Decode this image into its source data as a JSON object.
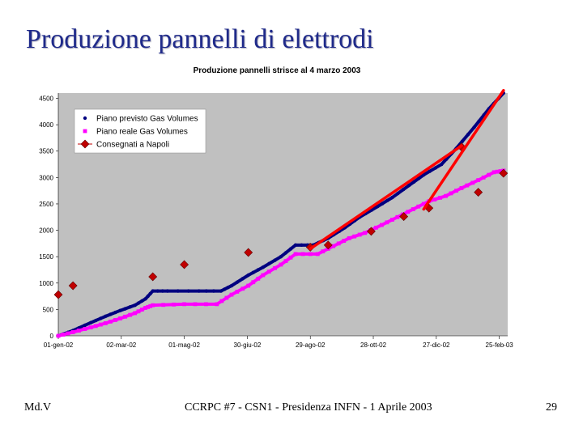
{
  "slide": {
    "title": "Produzione pannelli di elettrodi",
    "footer_left": "Md.V",
    "footer_center": "CCRPC #7 - CSN1 - Presidenza INFN - 1 Aprile 2003",
    "footer_right": "29"
  },
  "colors": {
    "plot_background": "#c0c0c0",
    "planned": "#000080",
    "actual": "#ff00ff",
    "delivered": "#c00000",
    "trend": "#ff0000"
  },
  "chart_data": {
    "type": "line",
    "title": "Produzione pannelli strisce al 4 marzo 2003",
    "xlabel": "",
    "ylabel": "",
    "x_ticks": [
      "01-gen-02",
      "02-mar-02",
      "01-mag-02",
      "30-giu-02",
      "29-ago-02",
      "28-ott-02",
      "27-dic-02",
      "25-feb-03"
    ],
    "y_ticks": [
      0,
      500,
      1000,
      1500,
      2000,
      2500,
      3000,
      3500,
      4000,
      4500
    ],
    "xlim": [
      "2002-01-01",
      "2003-03-05"
    ],
    "ylim": [
      0,
      4600
    ],
    "grid": false,
    "legend_position": "top-left",
    "series": [
      {
        "name": "Piano previsto Gas Volumes",
        "color": "#000080",
        "marker": "circle",
        "points": [
          [
            "2002-01-01",
            0
          ],
          [
            "2002-01-15",
            100
          ],
          [
            "2002-02-01",
            250
          ],
          [
            "2002-02-15",
            370
          ],
          [
            "2002-03-01",
            480
          ],
          [
            "2002-03-15",
            580
          ],
          [
            "2002-03-25",
            700
          ],
          [
            "2002-04-01",
            850
          ],
          [
            "2002-04-15",
            850
          ],
          [
            "2002-05-15",
            850
          ],
          [
            "2002-06-05",
            850
          ],
          [
            "2002-06-15",
            950
          ],
          [
            "2002-07-01",
            1150
          ],
          [
            "2002-07-15",
            1300
          ],
          [
            "2002-08-01",
            1500
          ],
          [
            "2002-08-15",
            1720
          ],
          [
            "2002-09-01",
            1720
          ],
          [
            "2002-09-15",
            1850
          ],
          [
            "2002-10-01",
            2050
          ],
          [
            "2002-10-15",
            2250
          ],
          [
            "2002-11-01",
            2450
          ],
          [
            "2002-11-15",
            2620
          ],
          [
            "2002-12-01",
            2850
          ],
          [
            "2002-12-15",
            3050
          ],
          [
            "2003-01-01",
            3250
          ],
          [
            "2003-01-15",
            3550
          ],
          [
            "2003-02-01",
            3950
          ],
          [
            "2003-02-15",
            4300
          ],
          [
            "2003-03-01",
            4600
          ]
        ]
      },
      {
        "name": "Piano reale Gas Volumes",
        "color": "#ff00ff",
        "marker": "square",
        "points": [
          [
            "2002-01-01",
            0
          ],
          [
            "2002-01-15",
            70
          ],
          [
            "2002-02-01",
            160
          ],
          [
            "2002-02-15",
            240
          ],
          [
            "2002-03-01",
            330
          ],
          [
            "2002-03-15",
            430
          ],
          [
            "2002-03-25",
            530
          ],
          [
            "2002-04-01",
            580
          ],
          [
            "2002-05-01",
            600
          ],
          [
            "2002-06-01",
            600
          ],
          [
            "2002-06-15",
            780
          ],
          [
            "2002-07-01",
            950
          ],
          [
            "2002-07-15",
            1150
          ],
          [
            "2002-08-01",
            1350
          ],
          [
            "2002-08-15",
            1550
          ],
          [
            "2002-09-05",
            1550
          ],
          [
            "2002-09-20",
            1700
          ],
          [
            "2002-10-05",
            1850
          ],
          [
            "2002-10-20",
            1950
          ],
          [
            "2002-11-05",
            2100
          ],
          [
            "2002-11-20",
            2250
          ],
          [
            "2002-12-05",
            2400
          ],
          [
            "2002-12-20",
            2550
          ],
          [
            "2003-01-05",
            2650
          ],
          [
            "2003-01-20",
            2800
          ],
          [
            "2003-02-05",
            2950
          ],
          [
            "2003-02-20",
            3100
          ],
          [
            "2003-03-01",
            3130
          ]
        ]
      },
      {
        "name": "Consegnati a Napoli",
        "color": "#c00000",
        "marker": "diamond",
        "points": [
          [
            "2002-01-01",
            780
          ],
          [
            "2002-01-15",
            950
          ],
          [
            "2002-04-01",
            1120
          ],
          [
            "2002-05-01",
            1350
          ],
          [
            "2002-07-01",
            1580
          ],
          [
            "2002-08-29",
            1680
          ],
          [
            "2002-09-15",
            1720
          ],
          [
            "2002-10-26",
            1980
          ],
          [
            "2002-11-26",
            2260
          ],
          [
            "2002-12-20",
            2420
          ],
          [
            "2003-01-20",
            3580
          ],
          [
            "2003-02-05",
            2720
          ],
          [
            "2003-03-01",
            3080
          ]
        ]
      }
    ],
    "annotation_lines": [
      {
        "points": [
          [
            "2002-08-29",
            1650
          ],
          [
            "2003-01-20",
            3600
          ]
        ]
      },
      {
        "points": [
          [
            "2002-12-15",
            2400
          ],
          [
            "2003-03-01",
            4650
          ]
        ]
      }
    ]
  }
}
